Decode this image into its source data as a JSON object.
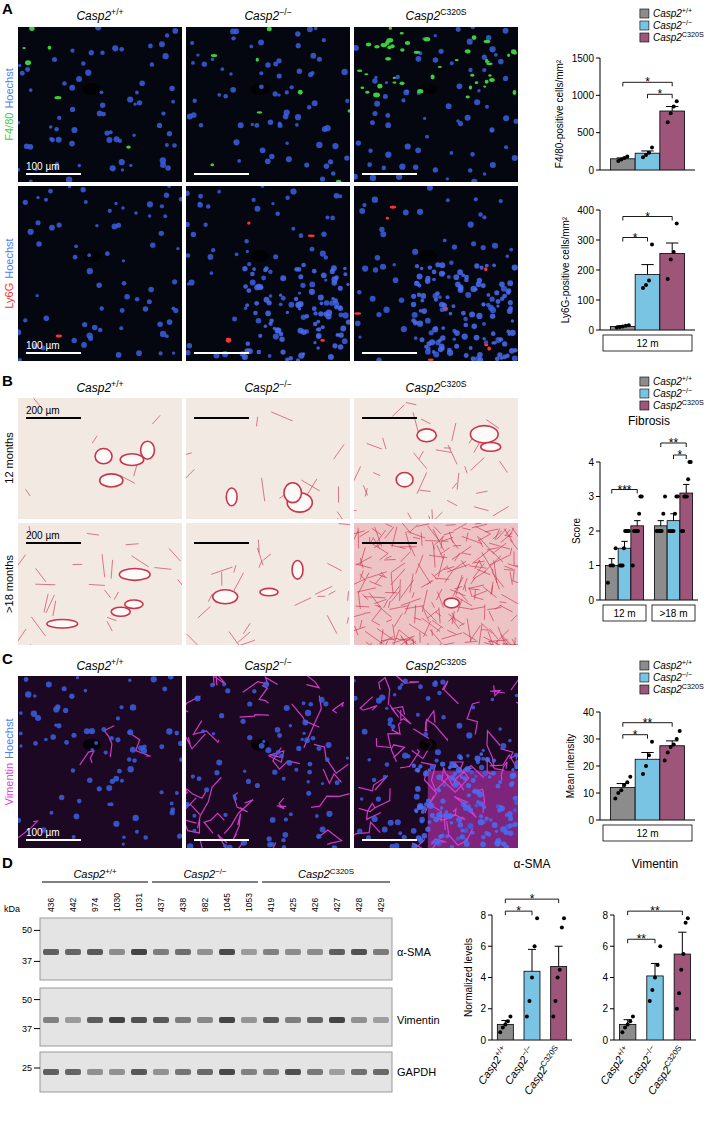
{
  "genotypes": [
    "Casp2+/+",
    "Casp2−/−",
    "Casp2C320S"
  ],
  "panels": [
    {
      "letter": "A",
      "rows": [
        {
          "channels": [
            {
              "text": "F4/80",
              "color": "#3ccf3c"
            },
            {
              "text": "Hoechst",
              "color": "#4d7cff"
            }
          ],
          "scale_bar": "100 µm"
        },
        {
          "channels": [
            {
              "text": "Ly6G",
              "color": "#ff3333"
            },
            {
              "text": "Hoechst",
              "color": "#4d7cff"
            }
          ],
          "scale_bar": "100 µm"
        }
      ]
    },
    {
      "letter": "B",
      "rows": [
        {
          "label": "12 months",
          "scale_bar": "200 µm"
        },
        {
          "label": ">18 months",
          "scale_bar": "200 µm"
        }
      ]
    },
    {
      "letter": "C",
      "rows": [
        {
          "channels": [
            {
              "text": "Vimentin",
              "color": "#e040d8"
            },
            {
              "text": "Hoechst",
              "color": "#4d7cff"
            }
          ],
          "scale_bar": "100 µm"
        }
      ]
    },
    {
      "letter": "D"
    }
  ],
  "blot": {
    "unit": "kDa",
    "groups": [
      {
        "label": "Casp2+/+",
        "lanes": [
          436,
          442,
          974,
          1030,
          1031
        ]
      },
      {
        "label": "Casp2−/−",
        "lanes": [
          437,
          438,
          982,
          1045,
          1053
        ]
      },
      {
        "label": "Casp2C320S",
        "lanes": [
          419,
          425,
          426,
          427,
          428,
          429
        ]
      }
    ],
    "strips": [
      {
        "protein": "α-SMA",
        "markers": [
          50,
          37
        ]
      },
      {
        "protein": "Vimentin",
        "markers": [
          50,
          37
        ]
      },
      {
        "protein": "GAPDH",
        "markers": [
          25
        ]
      }
    ]
  },
  "chart_data": [
    {
      "type": "bar",
      "ylabel": "F4/80-positive cells/mm²",
      "categories": [
        null
      ],
      "ylim": [
        0,
        1500
      ],
      "yticks": [
        0,
        500,
        1000,
        1500
      ],
      "legend": "top right",
      "series": [
        {
          "name": "Casp2+/+",
          "color": "#8c8c8c",
          "values": [
            150
          ],
          "errors": [
            12
          ],
          "points": [
            [
              120,
              140,
              160,
              180
            ]
          ]
        },
        {
          "name": "Casp2−/−",
          "color": "#79c3e3",
          "values": [
            225
          ],
          "errors": [
            30
          ],
          "points": [
            [
              170,
              200,
              230,
              300
            ]
          ]
        },
        {
          "name": "Casp2C320S",
          "color": "#9e557a",
          "values": [
            790
          ],
          "errors": [
            60
          ],
          "points": [
            [
              640,
              760,
              850,
              920
            ]
          ]
        }
      ],
      "significance": [
        {
          "group": 0,
          "pair": [
            0,
            2
          ],
          "label": "*"
        },
        {
          "group": 0,
          "pair": [
            1,
            2
          ],
          "label": "*"
        }
      ]
    },
    {
      "type": "bar",
      "ylabel": "Ly6G-positive cells/mm²",
      "categories": [
        "12 m"
      ],
      "ylim": [
        0,
        400
      ],
      "yticks": [
        0,
        100,
        200,
        300,
        400
      ],
      "series": [
        {
          "name": "Casp2+/+",
          "color": "#8c8c8c",
          "values": [
            12
          ],
          "errors": [
            2
          ],
          "points": [
            [
              8,
              10,
              12,
              14,
              16
            ]
          ]
        },
        {
          "name": "Casp2−/−",
          "color": "#79c3e3",
          "values": [
            185
          ],
          "errors": [
            33
          ],
          "points": [
            [
              140,
              150,
              165,
              285
            ]
          ]
        },
        {
          "name": "Casp2C320S",
          "color": "#9e557a",
          "values": [
            255
          ],
          "errors": [
            35
          ],
          "points": [
            [
              170,
              235,
              260,
              355
            ]
          ]
        }
      ],
      "significance": [
        {
          "group": 0,
          "pair": [
            0,
            1
          ],
          "label": "*"
        },
        {
          "group": 0,
          "pair": [
            0,
            2
          ],
          "label": "*"
        }
      ]
    },
    {
      "type": "bar",
      "title": "Fibrosis",
      "ylabel": "Score",
      "categories": [
        "12 m",
        ">18 m"
      ],
      "ylim": [
        0,
        4
      ],
      "yticks": [
        0,
        1,
        2,
        3,
        4
      ],
      "legend": "top right",
      "series": [
        {
          "name": "Casp2+/+",
          "color": "#8c8c8c",
          "values": [
            1.0,
            2.15
          ],
          "errors": [
            0.2,
            0.15
          ],
          "points": [
            [
              0.5,
              1,
              1,
              1.5
            ],
            [
              2,
              2,
              2,
              2,
              2.5,
              3
            ]
          ]
        },
        {
          "name": "Casp2−/−",
          "color": "#79c3e3",
          "values": [
            1.5,
            2.3
          ],
          "errors": [
            0.2,
            0.2
          ],
          "points": [
            [
              1,
              1,
              1,
              1.5,
              2,
              2,
              2,
              2
            ],
            [
              2,
              2,
              2,
              2,
              2.5,
              3,
              3
            ]
          ]
        },
        {
          "name": "Casp2C320S",
          "color": "#9e557a",
          "values": [
            2.15,
            3.1
          ],
          "errors": [
            0.15,
            0.25
          ],
          "points": [
            [
              1,
              2,
              2,
              2,
              2,
              2.5,
              3,
              3
            ],
            [
              2,
              2,
              3,
              3,
              3,
              3.5,
              4,
              4
            ]
          ]
        }
      ],
      "significance": [
        {
          "group": 0,
          "pair": [
            0,
            2
          ],
          "label": "***"
        },
        {
          "group": 1,
          "pair": [
            0,
            2
          ],
          "label": "**"
        },
        {
          "group": 1,
          "pair": [
            1,
            2
          ],
          "label": "*"
        }
      ]
    },
    {
      "type": "bar",
      "ylabel": "Mean intensity",
      "categories": [
        "12 m"
      ],
      "ylim": [
        0,
        40
      ],
      "yticks": [
        0,
        10,
        20,
        30,
        40
      ],
      "legend": "top right",
      "series": [
        {
          "name": "Casp2+/+",
          "color": "#8c8c8c",
          "values": [
            12
          ],
          "errors": [
            1.5
          ],
          "points": [
            [
              8,
              10,
              11,
              13,
              14,
              16
            ]
          ]
        },
        {
          "name": "Casp2−/−",
          "color": "#79c3e3",
          "values": [
            22.5
          ],
          "errors": [
            2.5
          ],
          "points": [
            [
              17,
              20,
              24,
              29
            ]
          ]
        },
        {
          "name": "Casp2C320S",
          "color": "#9e557a",
          "values": [
            27.5
          ],
          "errors": [
            1.8
          ],
          "points": [
            [
              22,
              25,
              27,
              28,
              30,
              33
            ]
          ]
        }
      ],
      "significance": [
        {
          "group": 0,
          "pair": [
            0,
            1
          ],
          "label": "*"
        },
        {
          "group": 0,
          "pair": [
            0,
            2
          ],
          "label": "**"
        }
      ]
    },
    {
      "type": "bar",
      "title": "α-SMA",
      "ylabel": "Normalized levels",
      "categories": [
        "Casp2+/+",
        "Casp2−/−",
        "Casp2C320S"
      ],
      "ylim": [
        0,
        8
      ],
      "yticks": [
        0,
        2,
        4,
        6,
        8
      ],
      "colors": [
        "#8c8c8c",
        "#79c3e3",
        "#9e557a"
      ],
      "values": [
        1,
        4.4,
        4.7
      ],
      "errors": [
        0.25,
        1.4,
        1.3
      ],
      "points": [
        [
          0.5,
          0.8,
          1,
          1.2,
          1.5
        ],
        [
          1.5,
          2.5,
          4,
          6,
          7.8
        ],
        [
          1.5,
          2.5,
          4,
          4.5,
          7.2,
          7.8
        ]
      ],
      "significance": [
        {
          "pair": [
            0,
            1
          ],
          "label": "*"
        },
        {
          "pair": [
            0,
            2
          ],
          "label": "*"
        }
      ]
    },
    {
      "type": "bar",
      "title": "Vimentin",
      "categories": [
        "Casp2+/+",
        "Casp2−/−",
        "Casp2C320S"
      ],
      "ylim": [
        0,
        8
      ],
      "yticks": [
        0,
        2,
        4,
        6,
        8
      ],
      "colors": [
        "#8c8c8c",
        "#79c3e3",
        "#9e557a"
      ],
      "values": [
        1,
        4.1,
        5.5
      ],
      "errors": [
        0.3,
        0.8,
        1.4
      ],
      "points": [
        [
          0.5,
          0.8,
          1,
          1.2,
          1.5
        ],
        [
          2.5,
          3.2,
          4,
          4.8,
          6
        ],
        [
          2,
          3,
          4.5,
          5.5,
          7.5,
          7.8
        ]
      ],
      "significance": [
        {
          "pair": [
            0,
            1
          ],
          "label": "**"
        },
        {
          "pair": [
            0,
            2
          ],
          "label": "**"
        }
      ]
    }
  ]
}
